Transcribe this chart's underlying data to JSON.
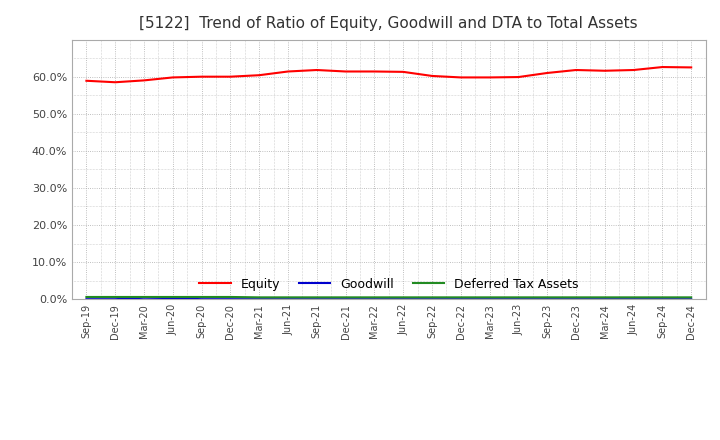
{
  "title": "[5122]  Trend of Ratio of Equity, Goodwill and DTA to Total Assets",
  "x_labels": [
    "Sep-19",
    "Dec-19",
    "Mar-20",
    "Jun-20",
    "Sep-20",
    "Dec-20",
    "Mar-21",
    "Jun-21",
    "Sep-21",
    "Dec-21",
    "Mar-22",
    "Jun-22",
    "Sep-22",
    "Dec-22",
    "Mar-23",
    "Jun-23",
    "Sep-23",
    "Dec-23",
    "Mar-24",
    "Jun-24",
    "Sep-24",
    "Dec-24"
  ],
  "equity": [
    0.589,
    0.585,
    0.59,
    0.598,
    0.6,
    0.6,
    0.604,
    0.614,
    0.618,
    0.614,
    0.614,
    0.613,
    0.602,
    0.598,
    0.598,
    0.599,
    0.61,
    0.618,
    0.616,
    0.618,
    0.626,
    0.625
  ],
  "goodwill": [
    0.0,
    0.0,
    0.004,
    0.003,
    0.0,
    0.0,
    0.0,
    0.0,
    0.0,
    0.0,
    0.0,
    0.0,
    0.0,
    0.0,
    0.0,
    0.0,
    0.0,
    0.0,
    0.0,
    0.0,
    0.0,
    0.0
  ],
  "dta": [
    0.006,
    0.006,
    0.006,
    0.006,
    0.006,
    0.006,
    0.005,
    0.005,
    0.005,
    0.005,
    0.005,
    0.005,
    0.005,
    0.005,
    0.005,
    0.005,
    0.005,
    0.005,
    0.005,
    0.005,
    0.005,
    0.005
  ],
  "equity_color": "#FF0000",
  "goodwill_color": "#0000CD",
  "dta_color": "#228B22",
  "bg_color": "#FFFFFF",
  "plot_bg_color": "#FFFFFF",
  "grid_color": "#aaaaaa",
  "ylim": [
    0.0,
    0.7
  ],
  "yticks": [
    0.0,
    0.1,
    0.2,
    0.3,
    0.4,
    0.5,
    0.6
  ],
  "title_fontsize": 11,
  "legend_labels": [
    "Equity",
    "Goodwill",
    "Deferred Tax Assets"
  ]
}
